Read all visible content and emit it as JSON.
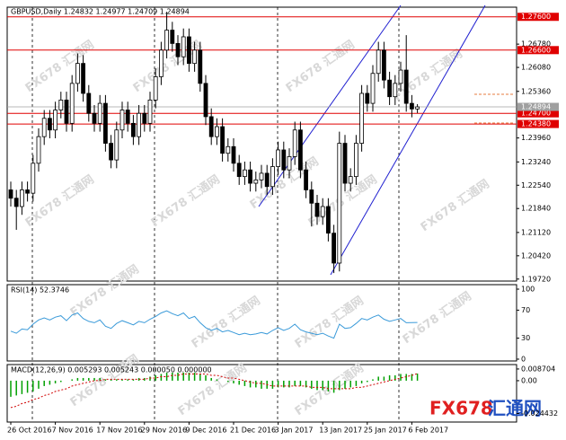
{
  "chart_data": [
    {
      "type": "candlestick",
      "title": "GBPUSD,Daily 1.24832 1.24977 1.24709 1.24894",
      "categories": [
        "26 Oct 2016",
        null,
        null,
        null,
        null,
        null,
        null,
        null,
        "7 Nov 2016",
        null,
        null,
        null,
        null,
        null,
        null,
        null,
        "17 Nov 2016",
        null,
        null,
        null,
        null,
        null,
        null,
        null,
        "29 Nov 2016",
        null,
        null,
        null,
        null,
        null,
        null,
        null,
        "9 Dec 2016",
        null,
        null,
        null,
        null,
        null,
        null,
        null,
        "21 Dec 2016",
        null,
        null,
        null,
        null,
        null,
        null,
        null,
        "3 Jan 2017",
        null,
        null,
        null,
        null,
        null,
        null,
        null,
        "13 Jan 2017",
        null,
        null,
        null,
        null,
        null,
        null,
        null,
        "25 Jan 2017",
        null,
        null,
        null,
        null,
        null,
        null,
        null,
        "6 Feb 2017",
        null
      ],
      "open": [
        1.224,
        1.2215,
        1.219,
        1.224,
        1.223,
        1.232,
        1.24,
        1.2455,
        1.242,
        1.248,
        1.251,
        1.244,
        1.256,
        1.262,
        1.253,
        1.247,
        1.244,
        1.25,
        1.238,
        1.233,
        1.242,
        1.248,
        1.244,
        1.24,
        1.247,
        1.244,
        1.251,
        1.258,
        1.266,
        1.272,
        1.268,
        1.264,
        1.27,
        1.262,
        1.266,
        1.256,
        1.246,
        1.24,
        1.243,
        1.235,
        1.237,
        1.232,
        1.228,
        1.23,
        1.226,
        1.227,
        1.229,
        1.225,
        1.231,
        1.236,
        1.23,
        1.234,
        1.242,
        1.23,
        1.224,
        1.22,
        1.216,
        1.219,
        1.211,
        1.202,
        1.238,
        1.226,
        1.228,
        1.238,
        1.253,
        1.25,
        1.259,
        1.266,
        1.257,
        1.252,
        1.256,
        1.26,
        1.25,
        1.24832
      ],
      "high": [
        1.2265,
        1.224,
        1.2265,
        1.2265,
        1.2345,
        1.2425,
        1.248,
        1.248,
        1.2505,
        1.2535,
        1.2535,
        1.2585,
        1.265,
        1.2645,
        1.2555,
        1.2495,
        1.2525,
        1.2525,
        1.2405,
        1.2445,
        1.2505,
        1.2505,
        1.2465,
        1.2495,
        1.2495,
        1.2535,
        1.2605,
        1.2685,
        1.2775,
        1.2745,
        1.2705,
        1.2725,
        1.2725,
        1.2685,
        1.2685,
        1.2585,
        1.2485,
        1.2455,
        1.2455,
        1.2395,
        1.2395,
        1.2345,
        1.2325,
        1.2325,
        1.2295,
        1.2315,
        1.2315,
        1.2335,
        1.2385,
        1.2385,
        1.2365,
        1.2445,
        1.2445,
        1.2325,
        1.2265,
        1.2225,
        1.2215,
        1.2215,
        1.2135,
        1.2415,
        1.2405,
        1.2305,
        1.2405,
        1.2555,
        1.2555,
        1.2615,
        1.2685,
        1.2685,
        1.2595,
        1.2585,
        1.2625,
        1.2705,
        1.2525,
        1.24977
      ],
      "low": [
        1.219,
        1.212,
        1.2165,
        1.2205,
        1.2205,
        1.2295,
        1.2375,
        1.2395,
        1.2395,
        1.2455,
        1.2415,
        1.2415,
        1.2535,
        1.2505,
        1.2445,
        1.2415,
        1.2415,
        1.2355,
        1.2305,
        1.2305,
        1.2395,
        1.2415,
        1.2375,
        1.2375,
        1.2415,
        1.2415,
        1.2485,
        1.2555,
        1.2635,
        1.2655,
        1.2615,
        1.2615,
        1.2595,
        1.2595,
        1.2535,
        1.2435,
        1.2375,
        1.2375,
        1.2325,
        1.2325,
        1.2295,
        1.2255,
        1.2255,
        1.2235,
        1.2235,
        1.2245,
        1.2225,
        1.2225,
        1.2285,
        1.2275,
        1.2275,
        1.2315,
        1.2275,
        1.2215,
        1.213,
        1.2135,
        1.2135,
        1.2085,
        1.199,
        1.1995,
        1.2235,
        1.2235,
        1.2255,
        1.2355,
        1.2475,
        1.2475,
        1.2565,
        1.2545,
        1.2495,
        1.2495,
        1.2535,
        1.2475,
        1.2458,
        1.24709
      ],
      "close": [
        1.2215,
        1.219,
        1.224,
        1.223,
        1.232,
        1.24,
        1.2455,
        1.242,
        1.248,
        1.251,
        1.244,
        1.256,
        1.262,
        1.253,
        1.247,
        1.244,
        1.25,
        1.238,
        1.233,
        1.242,
        1.248,
        1.244,
        1.24,
        1.247,
        1.244,
        1.251,
        1.258,
        1.266,
        1.272,
        1.268,
        1.264,
        1.27,
        1.262,
        1.266,
        1.256,
        1.246,
        1.24,
        1.243,
        1.235,
        1.237,
        1.232,
        1.228,
        1.23,
        1.226,
        1.227,
        1.229,
        1.225,
        1.231,
        1.236,
        1.23,
        1.234,
        1.242,
        1.23,
        1.224,
        1.22,
        1.216,
        1.219,
        1.211,
        1.202,
        1.238,
        1.226,
        1.228,
        1.238,
        1.253,
        1.25,
        1.259,
        1.266,
        1.257,
        1.252,
        1.256,
        1.26,
        1.25,
        1.24832,
        1.24894
      ],
      "up_color": "#ffffff",
      "down_color": "#000000",
      "ylim": [
        1.1966,
        1.2789
      ],
      "yticks": [
        {
          "value": 1.2678,
          "label": "1.26780"
        },
        {
          "value": 1.2608,
          "label": "1.26080"
        },
        {
          "value": 1.2536,
          "label": "1.25360"
        },
        {
          "value": 1.2396,
          "label": "1.23960"
        },
        {
          "value": 1.2324,
          "label": "1.23240"
        },
        {
          "value": 1.2254,
          "label": "1.22540"
        },
        {
          "value": 1.2184,
          "label": "1.21840"
        },
        {
          "value": 1.2112,
          "label": "1.21120"
        },
        {
          "value": 1.2042,
          "label": "1.20420"
        },
        {
          "value": 1.1972,
          "label": "1.19720"
        }
      ],
      "hlines": [
        {
          "value": 1.276,
          "label": "1.27600",
          "color": "#e00000"
        },
        {
          "value": 1.266,
          "label": "1.26600",
          "color": "#e00000"
        },
        {
          "value": 1.2438,
          "label": "1.24380",
          "color": "#e00000"
        },
        {
          "value": 1.247,
          "label": "1.24700",
          "color": "#e00000"
        }
      ],
      "price_line": {
        "value": 1.24894,
        "label": "1.24894",
        "color": "#a0a0a0"
      }
    },
    {
      "type": "line",
      "title": "RSI(14) 52.3746",
      "color": "#3a9ad9",
      "values": [
        40,
        37,
        43,
        42,
        50,
        56,
        59,
        56,
        60,
        62,
        55,
        63,
        66,
        58,
        54,
        52,
        56,
        47,
        44,
        51,
        55,
        52,
        49,
        54,
        52,
        57,
        61,
        66,
        69,
        65,
        62,
        66,
        58,
        61,
        52,
        45,
        41,
        44,
        39,
        41,
        38,
        35,
        37,
        35,
        36,
        38,
        36,
        41,
        45,
        41,
        44,
        50,
        42,
        39,
        37,
        35,
        37,
        33,
        30,
        50,
        44,
        45,
        51,
        58,
        56,
        60,
        63,
        57,
        54,
        56,
        58,
        52,
        52.3,
        52.3746
      ],
      "ylim": [
        -2.6,
        106.4
      ],
      "yticks": [
        100,
        70,
        30,
        0
      ]
    },
    {
      "type": "macd",
      "title": "MACD(12,26,9) 0.005293 0.005243 0.000050 0.000000",
      "color": "#00a000",
      "signal_color": "#d00000",
      "values": [
        -0.012,
        -0.011,
        -0.01,
        -0.009,
        -0.008,
        -0.006,
        -0.004,
        -0.003,
        -0.002,
        -0.001,
        0.0,
        0.001,
        0.002,
        0.002,
        0.002,
        0.002,
        0.002,
        0.001,
        0.001,
        0.001,
        0.001,
        0.001,
        0.001,
        0.002,
        0.002,
        0.003,
        0.004,
        0.005,
        0.006,
        0.006,
        0.006,
        0.006,
        0.006,
        0.006,
        0.005,
        0.004,
        0.002,
        0.001,
        0.0,
        -0.001,
        -0.002,
        -0.003,
        -0.004,
        -0.005,
        -0.005,
        -0.006,
        -0.006,
        -0.006,
        -0.005,
        -0.005,
        -0.005,
        -0.004,
        -0.004,
        -0.005,
        -0.006,
        -0.007,
        -0.007,
        -0.008,
        -0.009,
        -0.007,
        -0.006,
        -0.005,
        -0.004,
        -0.002,
        -0.001,
        0.001,
        0.003,
        0.003,
        0.004,
        0.004,
        0.005,
        0.005,
        0.005,
        0.005293
      ],
      "signal": [
        -0.02,
        -0.019,
        -0.017,
        -0.016,
        -0.014,
        -0.013,
        -0.011,
        -0.01,
        -0.008,
        -0.007,
        -0.006,
        -0.004,
        -0.003,
        -0.002,
        -0.001,
        0.0,
        0.0,
        0.001,
        0.001,
        0.001,
        0.001,
        0.001,
        0.001,
        0.001,
        0.001,
        0.002,
        0.002,
        0.003,
        0.003,
        0.004,
        0.004,
        0.005,
        0.005,
        0.005,
        0.005,
        0.005,
        0.004,
        0.004,
        0.003,
        0.002,
        0.002,
        0.001,
        0.0,
        -0.001,
        -0.002,
        -0.002,
        -0.003,
        -0.004,
        -0.004,
        -0.004,
        -0.004,
        -0.004,
        -0.004,
        -0.004,
        -0.005,
        -0.005,
        -0.005,
        -0.006,
        -0.006,
        -0.006,
        -0.006,
        -0.006,
        -0.005,
        -0.005,
        -0.004,
        -0.003,
        -0.002,
        -0.001,
        0.0,
        0.001,
        0.002,
        0.003,
        0.004,
        0.005243
      ],
      "ylim": [
        -0.0308,
        0.012
      ],
      "yticks": [
        0.008704,
        {
          "value": 0,
          "label": "0.00"
        },
        -0.024432
      ]
    }
  ],
  "watermark": "FX678 汇通网",
  "logo": {
    "brand": "FX678",
    "name": "汇通网"
  }
}
